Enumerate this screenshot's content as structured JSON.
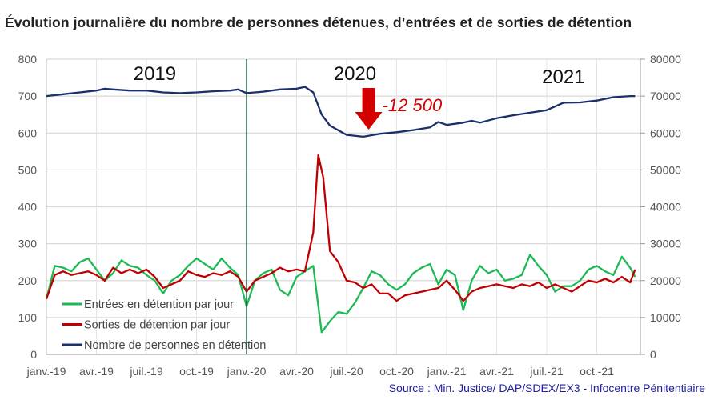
{
  "title": "Évolution journalière du nombre de personnes détenues, d’entrées et de sorties de détention",
  "source": "Source : Min. Justice/ DAP/SDEX/EX3 - Infocentre Pénitentiaire",
  "chart_data": {
    "type": "line",
    "title": "Évolution journalière du nombre de personnes détenues, d’entrées et de sorties de détention",
    "x_unit": "months since janv.-19",
    "x_ticks": [
      "janv.-19",
      "avr.-19",
      "juil.-19",
      "oct.-19",
      "janv.-20",
      "avr.-20",
      "juil.-20",
      "oct.-20",
      "janv.-21",
      "avr.-21",
      "juil.-21",
      "oct.-21"
    ],
    "y_left": {
      "range": [
        0,
        800
      ],
      "ticks": [
        "0",
        "100",
        "200",
        "300",
        "400",
        "500",
        "600",
        "700",
        "800"
      ]
    },
    "y_right": {
      "range": [
        0,
        80000
      ],
      "ticks": [
        "0",
        "10000",
        "20000",
        "30000",
        "40000",
        "50000",
        "60000",
        "70000",
        "80000"
      ]
    },
    "grid": true,
    "legend_position": "bottom-left inside",
    "year_labels": [
      {
        "text": "2019",
        "month": 6.5
      },
      {
        "text": "2020",
        "month": 18.5
      },
      {
        "text": "2021",
        "month": 31
      }
    ],
    "annotation": {
      "text": "-12 500",
      "month": 17.5,
      "color": "#d40000"
    },
    "separator_month": 12,
    "series": [
      {
        "name": "Entrées en détention par jour",
        "axis": "left",
        "color": "#1db954",
        "x": [
          0,
          0.5,
          1,
          1.5,
          2,
          2.5,
          3,
          3.5,
          4,
          4.5,
          5,
          5.5,
          6,
          6.5,
          7,
          7.5,
          8,
          8.5,
          9,
          9.5,
          10,
          10.5,
          11,
          11.5,
          12,
          12.5,
          13,
          13.5,
          14,
          14.5,
          15,
          15.5,
          16,
          16.5,
          17,
          17.5,
          18,
          18.5,
          19,
          19.5,
          20,
          20.5,
          21,
          21.5,
          22,
          22.5,
          23,
          23.5,
          24,
          24.5,
          25,
          25.5,
          26,
          26.5,
          27,
          27.5,
          28,
          28.5,
          29,
          29.5,
          30,
          30.5,
          31,
          31.5,
          32,
          32.5,
          33,
          33.5,
          34,
          34.5,
          35,
          35.3
        ],
        "values": [
          150,
          240,
          235,
          225,
          250,
          260,
          230,
          200,
          220,
          255,
          240,
          235,
          215,
          200,
          165,
          200,
          215,
          240,
          260,
          245,
          230,
          260,
          235,
          215,
          130,
          200,
          220,
          230,
          175,
          160,
          210,
          225,
          240,
          60,
          90,
          115,
          110,
          140,
          180,
          225,
          215,
          190,
          175,
          190,
          220,
          235,
          245,
          190,
          230,
          215,
          120,
          200,
          240,
          220,
          230,
          200,
          205,
          215,
          270,
          240,
          215,
          170,
          185,
          185,
          200,
          230,
          240,
          225,
          215,
          265,
          235,
          210
        ]
      },
      {
        "name": "Sorties de détention par jour",
        "axis": "left",
        "color": "#c00000",
        "x": [
          0,
          0.5,
          1,
          1.5,
          2,
          2.5,
          3,
          3.5,
          4,
          4.5,
          5,
          5.5,
          6,
          6.5,
          7,
          7.5,
          8,
          8.5,
          9,
          9.5,
          10,
          10.5,
          11,
          11.5,
          12,
          12.5,
          13,
          13.5,
          14,
          14.5,
          15,
          15.5,
          16,
          16.3,
          16.6,
          17,
          17.5,
          18,
          18.5,
          19,
          19.5,
          20,
          20.5,
          21,
          21.5,
          22,
          22.5,
          23,
          23.5,
          24,
          24.5,
          25,
          25.5,
          26,
          26.5,
          27,
          27.5,
          28,
          28.5,
          29,
          29.5,
          30,
          30.5,
          31,
          31.5,
          32,
          32.5,
          33,
          33.5,
          34,
          34.5,
          35,
          35.3
        ],
        "values": [
          150,
          215,
          225,
          215,
          220,
          225,
          215,
          200,
          235,
          220,
          230,
          220,
          230,
          210,
          180,
          190,
          200,
          225,
          215,
          210,
          220,
          215,
          225,
          210,
          170,
          200,
          210,
          220,
          235,
          225,
          230,
          225,
          330,
          540,
          480,
          280,
          250,
          200,
          195,
          180,
          190,
          165,
          165,
          145,
          160,
          165,
          170,
          175,
          180,
          200,
          175,
          145,
          170,
          180,
          185,
          190,
          185,
          180,
          190,
          185,
          195,
          180,
          190,
          180,
          170,
          185,
          200,
          195,
          205,
          195,
          210,
          195,
          230
        ]
      },
      {
        "name": "Nombre de personnes en détention",
        "axis": "right",
        "color": "#1a2f6b",
        "x": [
          0,
          1,
          2,
          3,
          3.5,
          4,
          5,
          6,
          7,
          8,
          9,
          10,
          11,
          11.5,
          12,
          13,
          14,
          15,
          15.5,
          16,
          16.5,
          17,
          18,
          19,
          20,
          21,
          22,
          23,
          23.5,
          24,
          25,
          25.5,
          26,
          27,
          28,
          29,
          30,
          31,
          32,
          33,
          34,
          35,
          35.3
        ],
        "values": [
          70000,
          70500,
          71000,
          71500,
          72000,
          71800,
          71500,
          71500,
          71000,
          70800,
          71000,
          71300,
          71500,
          71800,
          70800,
          71200,
          71800,
          72000,
          72500,
          71000,
          65000,
          62000,
          59500,
          59000,
          59800,
          60200,
          60800,
          61500,
          63000,
          62200,
          62800,
          63300,
          62800,
          64000,
          64800,
          65500,
          66200,
          68200,
          68300,
          68800,
          69700,
          70000,
          70000
        ]
      }
    ]
  }
}
